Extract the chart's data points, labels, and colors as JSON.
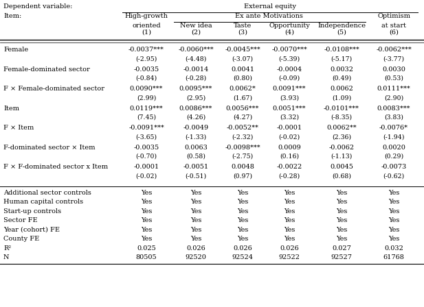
{
  "dep_var_label": "Dependent variable:",
  "item_label": "Item:",
  "col_group1_label": "External equity",
  "col_headers_top": [
    "High-growth",
    "Ex ante Motivations",
    "",
    "",
    "",
    "Optimism"
  ],
  "col_headers_mid": [
    "oriented",
    "New idea",
    "Taste",
    "Opportunity",
    "Independence",
    "at start"
  ],
  "col_headers_bot": [
    "(1)",
    "(2)",
    "(3)",
    "(4)",
    "(5)",
    "(6)"
  ],
  "row_labels": [
    "Female",
    "Female-dominated sector",
    "F × Female-dominated sector",
    "Item",
    "F × Item",
    "F-dominated sector × Item",
    "F × F-dominated sector x Item"
  ],
  "row_data": [
    [
      "-0.0037***",
      "-0.0060***",
      "-0.0045***",
      "-0.0070***",
      "-0.0108***",
      "-0.0062***"
    ],
    [
      "-0.0035",
      "-0.0014",
      "0.0041",
      "-0.0004",
      "0.0032",
      "0.0030"
    ],
    [
      "0.0090***",
      "0.0095***",
      "0.0062*",
      "0.0091***",
      "0.0062",
      "0.0111***"
    ],
    [
      "0.0119***",
      "0.0086***",
      "0.0056***",
      "0.0051***",
      "-0.0101***",
      "0.0083***"
    ],
    [
      "-0.0091***",
      "-0.0049",
      "-0.0052**",
      "-0.0001",
      "0.0062**",
      "-0.0076*"
    ],
    [
      "-0.0035",
      "0.0063",
      "-0.0098***",
      "0.0009",
      "-0.0062",
      "0.0020"
    ],
    [
      "-0.0001",
      "-0.0051",
      "0.0048",
      "-0.0022",
      "0.0045",
      "-0.0073"
    ]
  ],
  "tstat_data": [
    [
      "(-2.95)",
      "(-4.48)",
      "(-3.07)",
      "(-5.39)",
      "(-5.17)",
      "(-3.77)"
    ],
    [
      "(-0.84)",
      "(-0.28)",
      "(0.80)",
      "(-0.09)",
      "(0.49)",
      "(0.53)"
    ],
    [
      "(2.99)",
      "(2.95)",
      "(1.67)",
      "(3.93)",
      "(1.09)",
      "(2.90)"
    ],
    [
      "(7.45)",
      "(4.26)",
      "(4.27)",
      "(3.32)",
      "(-8.35)",
      "(3.83)"
    ],
    [
      "(-3.65)",
      "(-1.33)",
      "(-2.32)",
      "(-0.02)",
      "(2.36)",
      "(-1.94)"
    ],
    [
      "(-0.70)",
      "(0.58)",
      "(-2.75)",
      "(0.16)",
      "(-1.13)",
      "(0.29)"
    ],
    [
      "(-0.02)",
      "(-0.51)",
      "(0.97)",
      "(-0.28)",
      "(0.68)",
      "(-0.62)"
    ]
  ],
  "footer_labels": [
    "Additional sector controls",
    "Human capital controls",
    "Start-up controls",
    "Sector FE",
    "Year (cohort) FE",
    "County FE",
    "R²",
    "N"
  ],
  "footer_data": [
    [
      "Yes",
      "Yes",
      "Yes",
      "Yes",
      "Yes",
      "Yes"
    ],
    [
      "Yes",
      "Yes",
      "Yes",
      "Yes",
      "Yes",
      "Yes"
    ],
    [
      "Yes",
      "Yes",
      "Yes",
      "Yes",
      "Yes",
      "Yes"
    ],
    [
      "Yes",
      "Yes",
      "Yes",
      "Yes",
      "Yes",
      "Yes"
    ],
    [
      "Yes",
      "Yes",
      "Yes",
      "Yes",
      "Yes",
      "Yes"
    ],
    [
      "Yes",
      "Yes",
      "Yes",
      "Yes",
      "Yes",
      "Yes"
    ],
    [
      "0.025",
      "0.026",
      "0.026",
      "0.026",
      "0.027",
      "0.032"
    ],
    [
      "80505",
      "92520",
      "92524",
      "92522",
      "92527",
      "61768"
    ]
  ],
  "font_size": 7.0,
  "bg_color": "white"
}
